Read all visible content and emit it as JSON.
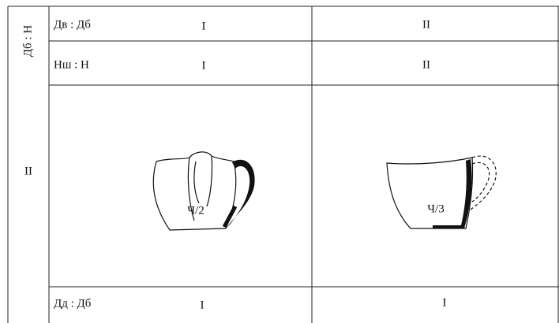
{
  "axis_label": "Дб : Н",
  "row_group": "II",
  "rows": [
    {
      "label": "Дв : Дб",
      "cells": [
        "I",
        "II"
      ]
    },
    {
      "label": "Нш : Н",
      "cells": [
        "I",
        "II"
      ]
    },
    {
      "label": "Дд : Дб",
      "cells": [
        "I",
        "I"
      ]
    }
  ],
  "figures": [
    {
      "label": "Ч/2"
    },
    {
      "label": "Ч/3"
    }
  ]
}
